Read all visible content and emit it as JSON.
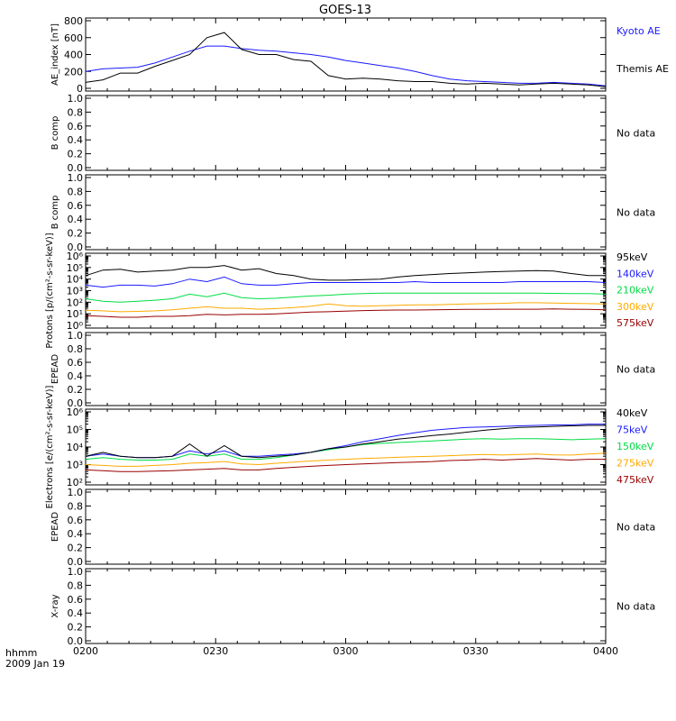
{
  "title": "GOES-13",
  "x_axis": {
    "ticks": [
      "0200",
      "0230",
      "0300",
      "0330",
      "0400"
    ],
    "label_line1": "hhmm",
    "label_line2": "2009 Jan 19"
  },
  "colors": {
    "black": "#000000",
    "blue": "#1a1aff",
    "green": "#00dd44",
    "orange": "#ffaa00",
    "darkred": "#990000"
  },
  "chart_data": [
    {
      "id": "ae",
      "type": "line",
      "ylabel": "AE_index [nT]",
      "ylim": [
        0,
        800
      ],
      "ticks": [
        0,
        200,
        400,
        600,
        800
      ],
      "x": [
        0,
        4,
        8,
        12,
        16,
        20,
        24,
        28,
        32,
        36,
        40,
        44,
        48,
        52,
        56,
        60,
        64,
        68,
        72,
        76,
        80,
        84,
        88,
        92,
        96,
        100,
        104,
        108,
        112,
        116,
        120
      ],
      "series": [
        {
          "name": "Kyoto AE",
          "color": "#1a1aff",
          "values": [
            200,
            230,
            240,
            250,
            300,
            370,
            440,
            500,
            500,
            470,
            450,
            440,
            420,
            400,
            370,
            330,
            300,
            270,
            240,
            200,
            150,
            110,
            90,
            80,
            70,
            60,
            60,
            70,
            60,
            50,
            30
          ]
        },
        {
          "name": "Themis AE",
          "color": "#000000",
          "values": [
            70,
            100,
            180,
            180,
            260,
            330,
            400,
            600,
            660,
            460,
            400,
            400,
            340,
            320,
            150,
            110,
            120,
            110,
            90,
            80,
            80,
            60,
            50,
            60,
            50,
            40,
            50,
            60,
            50,
            40,
            20
          ]
        }
      ]
    },
    {
      "id": "bcomp1",
      "type": "line",
      "ylabel": "B comp",
      "ylim": [
        0,
        1
      ],
      "ticks": [
        "0.0",
        "0.2",
        "0.4",
        "0.6",
        "0.8",
        "1.0"
      ],
      "note": "No data"
    },
    {
      "id": "bcomp2",
      "type": "line",
      "ylabel": "B comp",
      "ylim": [
        0,
        1
      ],
      "ticks": [
        "0.0",
        "0.2",
        "0.4",
        "0.6",
        "0.8",
        "1.0"
      ],
      "note": "No data"
    },
    {
      "id": "protons",
      "type": "line",
      "ylabel": "Protons [p/(cm²-s-sr-keV)]",
      "yscale": "log",
      "ylim": [
        1,
        1000000
      ],
      "ticks": [
        "10⁰",
        "10¹",
        "10²",
        "10³",
        "10⁴",
        "10⁵",
        "10⁶"
      ],
      "x": [
        0,
        4,
        8,
        12,
        16,
        20,
        24,
        28,
        32,
        36,
        40,
        44,
        48,
        52,
        56,
        60,
        64,
        68,
        72,
        76,
        80,
        84,
        88,
        92,
        96,
        100,
        104,
        108,
        112,
        116,
        120
      ],
      "series": [
        {
          "name": "575keV",
          "color": "#990000",
          "values": [
            7,
            6,
            5,
            5,
            6,
            6,
            7,
            9,
            8,
            9,
            9,
            10,
            12,
            14,
            15,
            17,
            19,
            20,
            21,
            21,
            22,
            23,
            24,
            24,
            25,
            25,
            25,
            26,
            25,
            24,
            22
          ]
        },
        {
          "name": "300keV",
          "color": "#ffaa00",
          "values": [
            20,
            18,
            15,
            16,
            18,
            22,
            30,
            40,
            30,
            30,
            25,
            28,
            35,
            45,
            70,
            50,
            45,
            50,
            55,
            60,
            60,
            65,
            70,
            75,
            80,
            90,
            90,
            85,
            80,
            75,
            70
          ]
        },
        {
          "name": "210keV",
          "color": "#00dd44",
          "values": [
            200,
            120,
            100,
            120,
            150,
            200,
            500,
            300,
            600,
            250,
            200,
            220,
            280,
            350,
            400,
            500,
            550,
            600,
            600,
            600,
            600,
            600,
            600,
            600,
            600,
            600,
            600,
            580,
            560,
            550,
            500
          ]
        },
        {
          "name": "140keV",
          "color": "#1a1aff",
          "values": [
            3000,
            2000,
            3000,
            3000,
            2500,
            4000,
            10000,
            6000,
            15000,
            4000,
            3000,
            3000,
            4000,
            5000,
            5000,
            5000,
            5000,
            5000,
            5000,
            6000,
            5000,
            5000,
            5000,
            5000,
            5000,
            6000,
            6000,
            6000,
            6000,
            6000,
            5000
          ]
        },
        {
          "name": "95keV",
          "color": "#000000",
          "values": [
            20000,
            60000,
            70000,
            40000,
            50000,
            60000,
            100000,
            100000,
            150000,
            60000,
            80000,
            30000,
            20000,
            10000,
            8000,
            8000,
            9000,
            10000,
            15000,
            20000,
            25000,
            30000,
            35000,
            40000,
            45000,
            50000,
            55000,
            50000,
            30000,
            20000,
            20000
          ]
        }
      ]
    },
    {
      "id": "epead1",
      "type": "line",
      "ylabel": "EPEAD",
      "ylim": [
        0,
        1
      ],
      "ticks": [
        "0.0",
        "0.2",
        "0.4",
        "0.6",
        "0.8",
        "1.0"
      ],
      "note": "No data"
    },
    {
      "id": "electrons",
      "type": "line",
      "ylabel": "Electrons [e/(cm²-s-sr-keV)]",
      "yscale": "log",
      "ylim": [
        100,
        1000000
      ],
      "ticks": [
        "10²",
        "10³",
        "10⁴",
        "10⁵",
        "10⁶"
      ],
      "x": [
        0,
        4,
        8,
        12,
        16,
        20,
        24,
        28,
        32,
        36,
        40,
        44,
        48,
        52,
        56,
        60,
        64,
        68,
        72,
        76,
        80,
        84,
        88,
        92,
        96,
        100,
        104,
        108,
        112,
        116,
        120
      ],
      "series": [
        {
          "name": "475keV",
          "color": "#990000",
          "values": [
            500,
            450,
            400,
            400,
            420,
            450,
            500,
            550,
            600,
            500,
            500,
            600,
            700,
            800,
            900,
            1000,
            1100,
            1200,
            1300,
            1400,
            1500,
            1700,
            1800,
            2000,
            1800,
            2000,
            2200,
            2000,
            1800,
            2000,
            2000
          ]
        },
        {
          "name": "275keV",
          "color": "#ffaa00",
          "values": [
            1000,
            900,
            800,
            800,
            900,
            1000,
            1200,
            1300,
            1500,
            1100,
            1000,
            1200,
            1400,
            1600,
            1800,
            2000,
            2200,
            2400,
            2600,
            2800,
            3000,
            3200,
            3500,
            3800,
            3500,
            3800,
            4000,
            3600,
            3500,
            4000,
            4500
          ]
        },
        {
          "name": "150keV",
          "color": "#00dd44",
          "values": [
            2000,
            2500,
            2000,
            1800,
            1800,
            2000,
            4000,
            3000,
            4000,
            2000,
            2000,
            2500,
            3500,
            5000,
            7000,
            10000,
            14000,
            16000,
            18000,
            20000,
            22000,
            25000,
            28000,
            30000,
            28000,
            30000,
            30000,
            28000,
            26000,
            28000,
            30000
          ]
        },
        {
          "name": "75keV",
          "color": "#1a1aff",
          "values": [
            3000,
            4000,
            3000,
            2500,
            2500,
            3000,
            6000,
            4000,
            6000,
            3000,
            3000,
            3500,
            4000,
            5000,
            8000,
            12000,
            20000,
            30000,
            45000,
            65000,
            90000,
            110000,
            130000,
            140000,
            150000,
            160000,
            170000,
            180000,
            180000,
            200000,
            200000
          ]
        },
        {
          "name": "40keV",
          "color": "#000000",
          "values": [
            3000,
            5000,
            3000,
            2500,
            2500,
            3000,
            15000,
            3000,
            12000,
            3000,
            2500,
            3000,
            3500,
            5000,
            8000,
            10000,
            15000,
            20000,
            28000,
            35000,
            45000,
            55000,
            70000,
            90000,
            110000,
            130000,
            140000,
            150000,
            160000,
            170000,
            170000
          ]
        }
      ]
    },
    {
      "id": "epead2",
      "type": "line",
      "ylabel": "EPEAD",
      "ylim": [
        0,
        1
      ],
      "ticks": [
        "0.0",
        "0.2",
        "0.4",
        "0.6",
        "0.8",
        "1.0"
      ],
      "note": "No data"
    },
    {
      "id": "xray",
      "type": "line",
      "ylabel": "X-ray",
      "ylim": [
        0,
        1
      ],
      "ticks": [
        "0.0",
        "0.2",
        "0.4",
        "0.6",
        "0.8",
        "1.0"
      ],
      "note": "No data"
    }
  ]
}
